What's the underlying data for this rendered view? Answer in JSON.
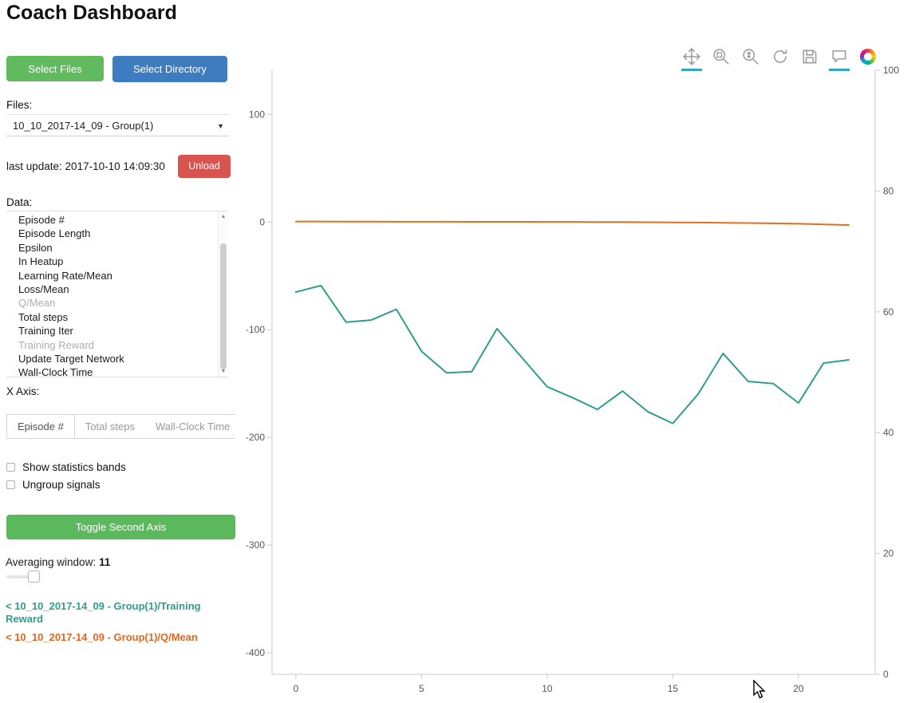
{
  "page_title": "Coach Dashboard",
  "sidebar": {
    "select_files_button": "Select Files",
    "select_directory_button": "Select Directory",
    "files_label": "Files:",
    "files_dropdown_value": "10_10_2017-14_09 - Group(1)",
    "last_update": "last update: 2017-10-10 14:09:30",
    "unload_button": "Unload",
    "data_label": "Data:",
    "data_items": [
      {
        "label": "Episode #",
        "selected": false
      },
      {
        "label": "Episode Length",
        "selected": false
      },
      {
        "label": "Epsilon",
        "selected": false
      },
      {
        "label": "In Heatup",
        "selected": false
      },
      {
        "label": "Learning Rate/Mean",
        "selected": false
      },
      {
        "label": "Loss/Mean",
        "selected": false
      },
      {
        "label": "Q/Mean",
        "selected": true
      },
      {
        "label": "Total steps",
        "selected": false
      },
      {
        "label": "Training Iter",
        "selected": false
      },
      {
        "label": "Training Reward",
        "selected": true
      },
      {
        "label": "Update Target Network",
        "selected": false
      },
      {
        "label": "Wall-Clock Time",
        "selected": false
      }
    ],
    "x_axis_label": "X Axis:",
    "x_axis_tabs": [
      "Episode #",
      "Total steps",
      "Wall-Clock Time"
    ],
    "x_axis_active_tab": "Episode #",
    "checkboxes": [
      {
        "label": "Show statistics bands",
        "checked": false
      },
      {
        "label": "Ungroup signals",
        "checked": false
      }
    ],
    "toggle_second_axis_button": "Toggle Second Axis",
    "averaging_window_label": "Averaging window:",
    "averaging_window_value": "11",
    "legend": [
      {
        "label": "< 10_10_2017-14_09 - Group(1)/Training Reward",
        "color": "#2f9e8a"
      },
      {
        "label": "< 10_10_2017-14_09 - Group(1)/Q/Mean",
        "color": "#e0661f"
      }
    ],
    "colors": {
      "select_files": "#61ba5e",
      "select_directory": "#3d7dbf",
      "unload": "#d9534f",
      "toggle_second_axis": "#5cb85c"
    }
  },
  "toolbar": {
    "active_color": "#2fabb7",
    "tools": [
      {
        "name": "pan",
        "active": true
      },
      {
        "name": "box-zoom",
        "active": false
      },
      {
        "name": "wheel-zoom",
        "active": false
      },
      {
        "name": "reset",
        "active": false
      },
      {
        "name": "save",
        "active": false
      },
      {
        "name": "hover",
        "active": true
      }
    ]
  },
  "chart_data": {
    "type": "line",
    "title": "",
    "x": [
      0,
      1,
      2,
      3,
      4,
      5,
      6,
      7,
      8,
      9,
      10,
      11,
      12,
      13,
      14,
      15,
      16,
      17,
      18,
      19,
      20,
      21,
      22
    ],
    "series": [
      {
        "name": "10_10_2017-14_09 - Group(1)/Training Reward",
        "color": "#2f9e8a",
        "axis": "left",
        "values": [
          -65,
          -59,
          -93,
          -91,
          -81,
          -120,
          -140,
          -139,
          -99,
          -126,
          -153,
          -163,
          -174,
          -157,
          -176,
          -187,
          -160,
          -122,
          -148,
          -150,
          -168,
          -131,
          -128
        ]
      },
      {
        "name": "10_10_2017-14_09 - Group(1)/Q/Mean",
        "color": "#e2701b",
        "axis": "left",
        "values": [
          0.5,
          0.5,
          0.4,
          0.4,
          0.3,
          0.3,
          0.3,
          0.2,
          0.2,
          0.2,
          0.1,
          0.1,
          0,
          0,
          -0.2,
          -0.3,
          -0.5,
          -0.7,
          -0.9,
          -1.2,
          -1.6,
          -2.2,
          -2.8
        ]
      }
    ],
    "x_axis": {
      "ticks": [
        0,
        5,
        10,
        15,
        20
      ],
      "range": [
        -0.95,
        23.05
      ]
    },
    "left_axis": {
      "ticks": [
        100,
        0,
        -100,
        -200,
        -300,
        -400
      ],
      "range": [
        -420,
        141
      ]
    },
    "right_axis": {
      "ticks": [
        0,
        20,
        40,
        60,
        80,
        100
      ],
      "range": [
        0,
        100
      ]
    },
    "grid": false,
    "legend_position": "sidebar"
  }
}
